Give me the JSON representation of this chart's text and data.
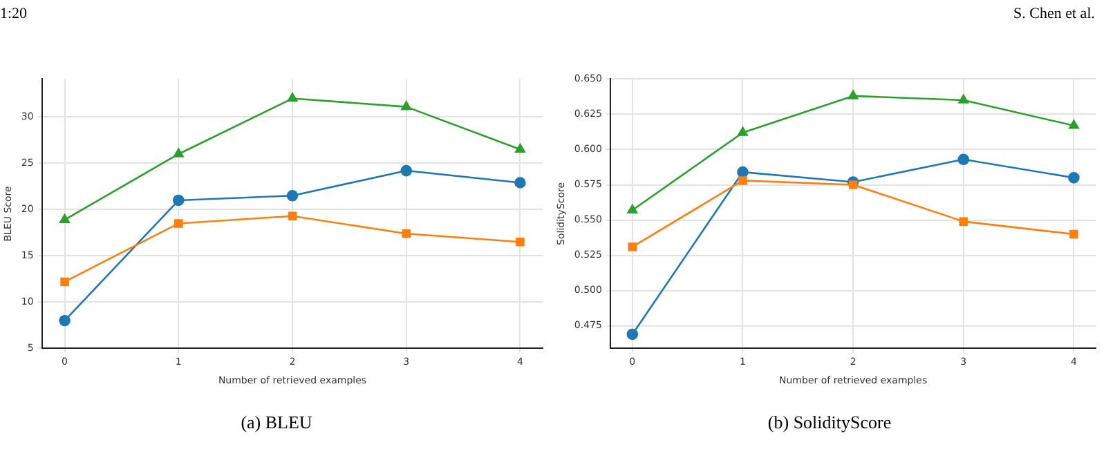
{
  "chart_data": [
    {
      "type": "line",
      "title": "(a)  BLEU",
      "annotations": [
        "1:20",
        "S. Chen et al."
      ],
      "xlabel": "Number of retrieved examples",
      "ylabel": "BLEU Score",
      "x": [
        0,
        1,
        2,
        3,
        4
      ],
      "xlim": [
        -0.2,
        4.2
      ],
      "xticks": [
        0,
        1,
        2,
        3,
        4
      ],
      "ylim": [
        5,
        34.1
      ],
      "yticks": [
        5,
        10,
        15,
        20,
        25,
        30
      ],
      "grid": true,
      "legend": false,
      "series": [
        {
          "color": "#1f77b4",
          "marker": "circle",
          "values": [
            8,
            21,
            21.5,
            24.2,
            22.9
          ]
        },
        {
          "color": "#ff7f0e",
          "marker": "square",
          "values": [
            12.2,
            18.5,
            19.3,
            17.4,
            16.5
          ]
        },
        {
          "color": "#2ca02c",
          "marker": "triangle",
          "values": [
            18.9,
            26,
            32,
            31.1,
            26.5
          ]
        }
      ]
    },
    {
      "type": "line",
      "title": "(b)  SolidityScore",
      "xlabel": "Number of retrieved examples",
      "ylabel": "SolidityScore",
      "x": [
        0,
        1,
        2,
        3,
        4
      ],
      "xlim": [
        -0.2,
        4.2
      ],
      "xticks": [
        0,
        1,
        2,
        3,
        4
      ],
      "ylim": [
        0.459,
        0.65
      ],
      "yticks": [
        {
          "value": 0.475,
          "label": "0.475"
        },
        {
          "value": 0.5,
          "label": "0.500"
        },
        {
          "value": 0.525,
          "label": "0.525"
        },
        {
          "value": 0.55,
          "label": "0.550"
        },
        {
          "value": 0.575,
          "label": "0.575"
        },
        {
          "value": 0.6,
          "label": "0.600"
        },
        {
          "value": 0.625,
          "label": "0.625"
        },
        {
          "value": 0.65,
          "label": "0.650"
        }
      ],
      "grid": true,
      "legend": false,
      "series": [
        {
          "color": "#1f77b4",
          "marker": "circle",
          "values": [
            0.469,
            0.584,
            0.577,
            0.593,
            0.58
          ]
        },
        {
          "color": "#ff7f0e",
          "marker": "square",
          "values": [
            0.531,
            0.578,
            0.575,
            0.549,
            0.54
          ]
        },
        {
          "color": "#2ca02c",
          "marker": "triangle",
          "values": [
            0.557,
            0.612,
            0.638,
            0.635,
            0.617
          ]
        }
      ]
    }
  ]
}
